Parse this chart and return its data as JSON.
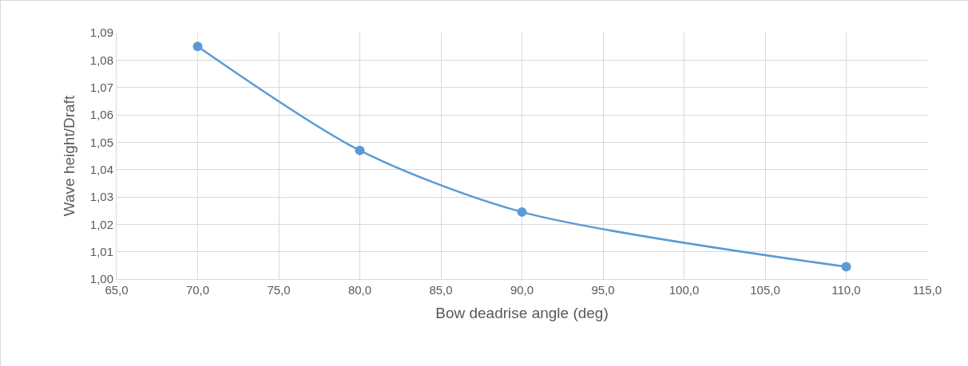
{
  "chart_data": {
    "type": "line",
    "xlabel": "Bow deadrise angle (deg)",
    "ylabel": "Wave height/Draft",
    "x": [
      70,
      80,
      90,
      110
    ],
    "series": [
      {
        "color": "#5b9bd5",
        "values": [
          1.085,
          1.047,
          1.0245,
          1.0045
        ]
      }
    ],
    "xlim": [
      65,
      115
    ],
    "xticks": [
      {
        "value": 65,
        "label": "65,0"
      },
      {
        "value": 70,
        "label": "70,0"
      },
      {
        "value": 75,
        "label": "75,0"
      },
      {
        "value": 80,
        "label": "80,0"
      },
      {
        "value": 85,
        "label": "85,0"
      },
      {
        "value": 90,
        "label": "90,0"
      },
      {
        "value": 95,
        "label": "95,0"
      },
      {
        "value": 100,
        "label": "100,0"
      },
      {
        "value": 105,
        "label": "105,0"
      },
      {
        "value": 110,
        "label": "110,0"
      },
      {
        "value": 115,
        "label": "115,0"
      }
    ],
    "ylim": [
      1.0,
      1.09
    ],
    "yticks": [
      {
        "value": 1.0,
        "label": "1,00"
      },
      {
        "value": 1.01,
        "label": "1,01"
      },
      {
        "value": 1.02,
        "label": "1,02"
      },
      {
        "value": 1.03,
        "label": "1,03"
      },
      {
        "value": 1.04,
        "label": "1,04"
      },
      {
        "value": 1.05,
        "label": "1,05"
      },
      {
        "value": 1.06,
        "label": "1,06"
      },
      {
        "value": 1.07,
        "label": "1,07"
      },
      {
        "value": 1.08,
        "label": "1,08"
      },
      {
        "value": 1.09,
        "label": "1,09"
      }
    ],
    "grid": true,
    "marker": "circle",
    "line_style": "solid"
  }
}
